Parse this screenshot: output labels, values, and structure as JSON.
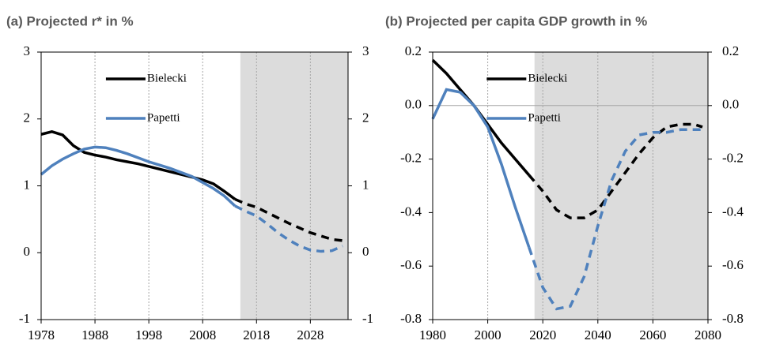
{
  "chart_data": [
    {
      "type": "line",
      "title": "(a) Projected r* in %",
      "x": [
        1978,
        1980,
        1982,
        1984,
        1986,
        1988,
        1990,
        1992,
        1994,
        1996,
        1998,
        2000,
        2002,
        2004,
        2006,
        2008,
        2010,
        2012,
        2014,
        2016,
        2018,
        2020,
        2022,
        2024,
        2026,
        2028,
        2030,
        2032,
        2034
      ],
      "series": [
        {
          "name": "Bielecki",
          "color": "#000000",
          "values": [
            1.77,
            1.81,
            1.76,
            1.6,
            1.5,
            1.46,
            1.43,
            1.39,
            1.36,
            1.33,
            1.29,
            1.25,
            1.21,
            1.17,
            1.13,
            1.09,
            1.03,
            0.92,
            0.8,
            0.73,
            0.68,
            0.6,
            0.52,
            0.44,
            0.37,
            0.3,
            0.25,
            0.2,
            0.18
          ]
        },
        {
          "name": "Papetti",
          "color": "#4f81bd",
          "values": [
            1.17,
            1.3,
            1.4,
            1.48,
            1.55,
            1.58,
            1.57,
            1.53,
            1.48,
            1.42,
            1.36,
            1.31,
            1.26,
            1.2,
            1.14,
            1.05,
            0.96,
            0.85,
            0.7,
            0.62,
            0.55,
            0.43,
            0.3,
            0.19,
            0.1,
            0.04,
            0.02,
            0.03,
            0.1
          ]
        }
      ],
      "xlim": [
        1978,
        2035
      ],
      "xticks": [
        1978,
        1988,
        1998,
        2008,
        2018,
        2028
      ],
      "ylim": [
        -1,
        3
      ],
      "yticks": [
        -1,
        0,
        1,
        2,
        3
      ],
      "y2lim": [
        -1,
        3
      ],
      "y2ticks": [
        -1,
        0,
        1,
        2,
        3
      ],
      "projection_from": 2015,
      "shade_color": "#dcdcdc",
      "grid": true,
      "zero_line": false,
      "legend": "upper center"
    },
    {
      "type": "line",
      "title": "(b) Projected per capita GDP growth in %",
      "x": [
        1980,
        1985,
        1990,
        1995,
        2000,
        2005,
        2010,
        2015,
        2020,
        2025,
        2030,
        2035,
        2040,
        2045,
        2050,
        2055,
        2060,
        2065,
        2070,
        2075,
        2078
      ],
      "series": [
        {
          "name": "Bielecki",
          "color": "#000000",
          "values": [
            0.17,
            0.12,
            0.06,
            0.0,
            -0.07,
            -0.14,
            -0.2,
            -0.26,
            -0.32,
            -0.39,
            -0.42,
            -0.42,
            -0.39,
            -0.32,
            -0.25,
            -0.18,
            -0.12,
            -0.08,
            -0.07,
            -0.07,
            -0.08
          ]
        },
        {
          "name": "Papetti",
          "color": "#4f81bd",
          "values": [
            -0.05,
            0.06,
            0.05,
            0.0,
            -0.08,
            -0.22,
            -0.38,
            -0.53,
            -0.68,
            -0.76,
            -0.75,
            -0.64,
            -0.45,
            -0.28,
            -0.17,
            -0.11,
            -0.1,
            -0.1,
            -0.09,
            -0.09,
            -0.09
          ]
        }
      ],
      "xlim": [
        1980,
        2080
      ],
      "xticks": [
        1980,
        2000,
        2020,
        2040,
        2060,
        2080
      ],
      "ylim": [
        -0.8,
        0.2
      ],
      "yticks": [
        -0.8,
        -0.6,
        -0.4,
        -0.2,
        {
          "value": 0,
          "label": "0.0"
        },
        0.2
      ],
      "y2lim": [
        -0.8,
        0.2
      ],
      "y2ticks": [
        -0.8,
        -0.6,
        -0.4,
        -0.2,
        {
          "value": 0,
          "label": "0.0"
        },
        0.2
      ],
      "projection_from": 2017,
      "shade_color": "#dcdcdc",
      "grid": true,
      "zero_line": true,
      "legend": "upper center"
    }
  ]
}
